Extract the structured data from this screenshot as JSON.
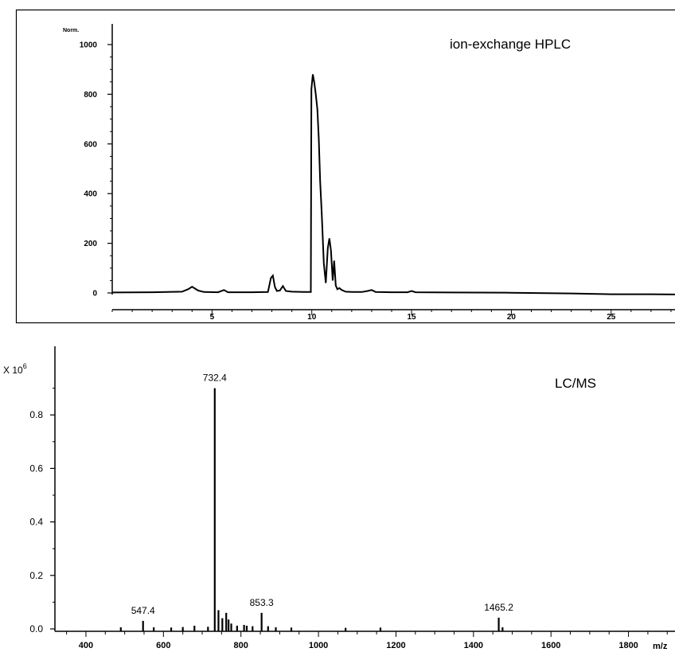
{
  "chart_data": [
    {
      "type": "line",
      "title": "ion-exchange HPLC",
      "ylabel": "Norm.",
      "xlabel": "",
      "xlim": [
        0,
        28.2
      ],
      "ylim": [
        -30,
        1100
      ],
      "x_ticks": [
        5,
        10,
        15,
        20,
        25
      ],
      "x_tick_labels": [
        "5",
        "10",
        "15",
        "20",
        "25"
      ],
      "y_ticks": [
        0,
        200,
        400,
        600,
        800,
        1000
      ],
      "y_tick_labels": [
        "0",
        "200",
        "400",
        "600",
        "800",
        "1000"
      ],
      "grid": false,
      "series": [
        {
          "x": [
            0.0,
            2.0,
            3.5,
            3.8,
            4.0,
            4.3,
            4.6,
            5.3,
            5.6,
            5.8,
            6.2,
            7.0,
            7.8,
            7.95,
            8.05,
            8.15,
            8.25,
            8.4,
            8.55,
            8.7,
            9.0,
            9.6,
            9.95,
            9.98,
            10.05,
            10.12,
            10.2,
            10.28,
            10.35,
            10.42,
            10.5,
            10.6,
            10.7,
            10.8,
            10.88,
            10.96,
            11.05,
            11.12,
            11.2,
            11.28,
            11.38,
            11.5,
            11.7,
            12.0,
            12.5,
            12.8,
            13.0,
            13.2,
            14.0,
            14.8,
            15.0,
            15.2,
            17.0,
            20.0,
            23.0,
            25.0,
            26.0,
            27.0,
            28.2
          ],
          "y": [
            2,
            3,
            5,
            15,
            25,
            10,
            4,
            3,
            12,
            3,
            3,
            3,
            4,
            60,
            70,
            25,
            8,
            10,
            28,
            8,
            5,
            4,
            4,
            820,
            880,
            850,
            800,
            740,
            620,
            450,
            320,
            120,
            40,
            180,
            220,
            170,
            50,
            130,
            30,
            15,
            20,
            12,
            5,
            4,
            4,
            8,
            12,
            4,
            3,
            3,
            8,
            3,
            2,
            1,
            -2,
            -5,
            -5,
            -5,
            -6
          ]
        }
      ]
    },
    {
      "type": "bar",
      "title": "LC/MS",
      "ylabel": "X 10^6",
      "xlabel": "m/z",
      "xlim": [
        320,
        1920
      ],
      "ylim": [
        0,
        1.0
      ],
      "x_ticks": [
        400,
        600,
        800,
        1000,
        1200,
        1400,
        1600,
        1800
      ],
      "x_tick_labels": [
        "400",
        "600",
        "800",
        "1000",
        "1200",
        "1400",
        "1600",
        "1800"
      ],
      "y_ticks": [
        0,
        0.2,
        0.4,
        0.6,
        0.8
      ],
      "y_tick_labels": [
        "0.0",
        "0.2",
        "0.4",
        "0.6",
        "0.8"
      ],
      "grid": false,
      "peaks": {
        "mz": [
          490,
          547.4,
          575,
          620,
          650,
          680,
          715,
          732.4,
          742,
          752,
          762,
          768,
          775,
          790,
          808,
          815,
          830,
          853.3,
          870,
          890,
          930,
          1070,
          1160,
          1465.2,
          1475
        ],
        "intensity": [
          0.006,
          0.03,
          0.006,
          0.005,
          0.007,
          0.012,
          0.008,
          0.9,
          0.07,
          0.04,
          0.06,
          0.035,
          0.02,
          0.012,
          0.015,
          0.012,
          0.01,
          0.06,
          0.01,
          0.006,
          0.005,
          0.004,
          0.005,
          0.042,
          0.006
        ]
      },
      "annotations": [
        {
          "mz": 547.4,
          "label": "547.4"
        },
        {
          "mz": 732.4,
          "label": "732.4"
        },
        {
          "mz": 853.3,
          "label": "853.3"
        },
        {
          "mz": 1465.2,
          "label": "1465.2"
        }
      ]
    }
  ]
}
